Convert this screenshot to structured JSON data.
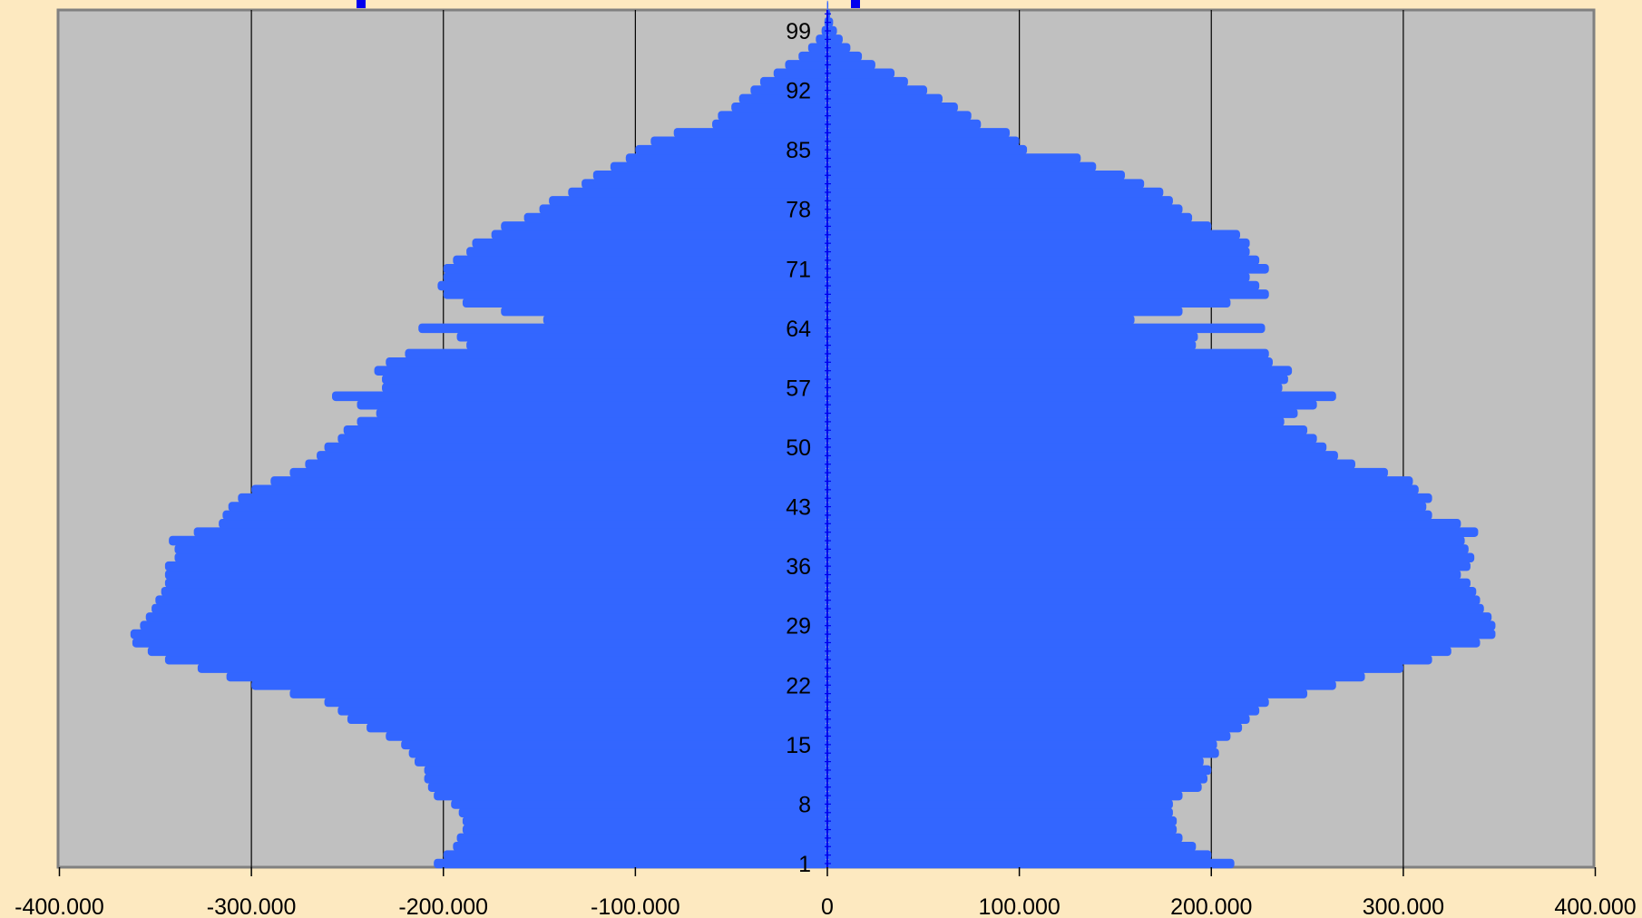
{
  "chart_data": {
    "type": "bar",
    "orientation": "horizontal",
    "layout": "population-pyramid",
    "colors": {
      "bar": "#3366ff",
      "plot_background": "#c0c0c0",
      "page_background": "#fde9c0",
      "axis_ticks": "#0000ee",
      "gridline": "#000000"
    },
    "grid": true,
    "xlim": [
      -400000,
      400000
    ],
    "x_ticks": [
      -400000,
      -300000,
      -200000,
      -100000,
      0,
      100000,
      200000,
      300000,
      400000
    ],
    "x_tick_labels": [
      "-400.000",
      "-300.000",
      "-200.000",
      "-100.000",
      "0",
      "100.000",
      "200.000",
      "300.000",
      "400.000"
    ],
    "age_range": [
      1,
      102
    ],
    "y_tick_labels": [
      "1",
      "8",
      "15",
      "22",
      "29",
      "36",
      "43",
      "50",
      "57",
      "64",
      "71",
      "78",
      "85",
      "92",
      "99"
    ],
    "left_values": [
      -205000,
      -200000,
      -195000,
      -193000,
      -190000,
      -190000,
      -192000,
      -196000,
      -205000,
      -208000,
      -210000,
      -210000,
      -215000,
      -218000,
      -222000,
      -230000,
      -240000,
      -250000,
      -255000,
      -262000,
      -280000,
      -300000,
      -313000,
      -328000,
      -345000,
      -354000,
      -362000,
      -363000,
      -358000,
      -355000,
      -352000,
      -350000,
      -347000,
      -345000,
      -345000,
      -345000,
      -340000,
      -340000,
      -343000,
      -330000,
      -317000,
      -315000,
      -312000,
      -307000,
      -300000,
      -290000,
      -280000,
      -272000,
      -266000,
      -262000,
      -255000,
      -252000,
      -245000,
      -235000,
      -245000,
      -258000,
      -232000,
      -232000,
      -236000,
      -230000,
      -220000,
      -188000,
      -193000,
      -213000,
      -148000,
      -170000,
      -190000,
      -200000,
      -203000,
      -200000,
      -200000,
      -195000,
      -188000,
      -185000,
      -175000,
      -170000,
      -158000,
      -150000,
      -145000,
      -135000,
      -128000,
      -122000,
      -113000,
      -105000,
      -100000,
      -92000,
      -80000,
      -60000,
      -57000,
      -50000,
      -46000,
      -40000,
      -35000,
      -28000,
      -22000,
      -15000,
      -10000,
      -6000,
      -3000,
      -1500,
      -500,
      -200
    ],
    "right_values": [
      212000,
      200000,
      192000,
      185000,
      182000,
      182000,
      180000,
      180000,
      185000,
      195000,
      198000,
      200000,
      196000,
      204000,
      203000,
      210000,
      216000,
      220000,
      225000,
      230000,
      250000,
      265000,
      280000,
      300000,
      315000,
      325000,
      340000,
      348000,
      348000,
      346000,
      342000,
      340000,
      338000,
      335000,
      330000,
      335000,
      337000,
      334000,
      332000,
      339000,
      330000,
      315000,
      312000,
      315000,
      308000,
      305000,
      292000,
      275000,
      266000,
      260000,
      255000,
      250000,
      238000,
      245000,
      255000,
      265000,
      237000,
      240000,
      242000,
      232000,
      230000,
      192000,
      193000,
      228000,
      160000,
      185000,
      210000,
      230000,
      225000,
      220000,
      230000,
      225000,
      220000,
      220000,
      215000,
      200000,
      190000,
      185000,
      180000,
      175000,
      165000,
      155000,
      140000,
      132000,
      104000,
      100000,
      95000,
      80000,
      75000,
      68000,
      60000,
      52000,
      42000,
      35000,
      25000,
      18000,
      12000,
      8000,
      5000,
      3000,
      1500,
      500
    ]
  }
}
